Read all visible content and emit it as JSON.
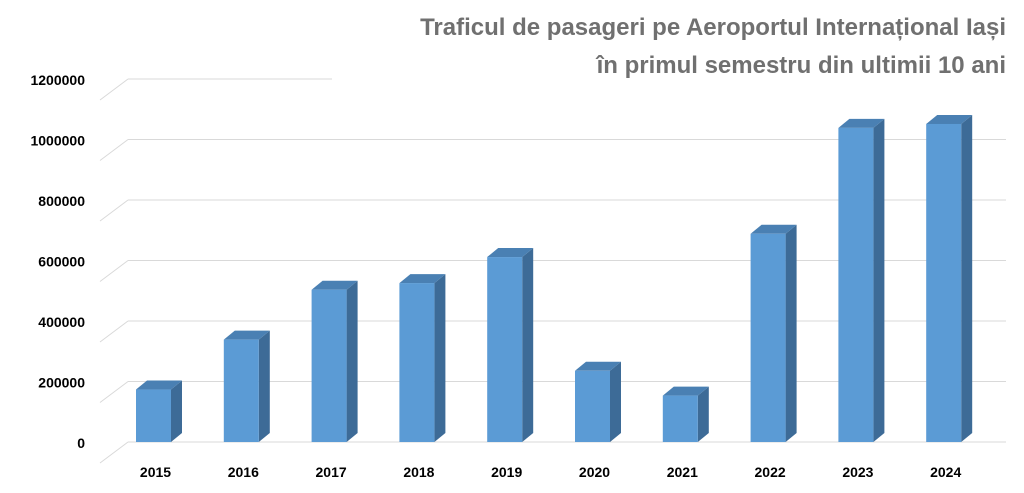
{
  "chart_data": {
    "type": "bar",
    "title": "Traficul de pasageri pe Aeroportul Internațional Iași",
    "subtitle": "în primul semestru din ultimii 10 ani",
    "xlabel": "",
    "ylabel": "",
    "categories": [
      "2015",
      "2016",
      "2017",
      "2018",
      "2019",
      "2020",
      "2021",
      "2022",
      "2023",
      "2024"
    ],
    "values": [
      180000,
      345000,
      510000,
      532000,
      618000,
      242000,
      160000,
      695000,
      1045000,
      1058000
    ],
    "ylim": [
      0,
      1200000
    ],
    "yticks": [
      "0",
      "200000",
      "400000",
      "600000",
      "800000",
      "1000000",
      "1200000"
    ],
    "grid": true,
    "style": "3d-column",
    "colors": {
      "bar_front": "#5b9bd5",
      "bar_side": "#3d6b97",
      "bar_top": "#4a80b3",
      "grid": "#d9d9d9",
      "title": "#707070"
    }
  }
}
